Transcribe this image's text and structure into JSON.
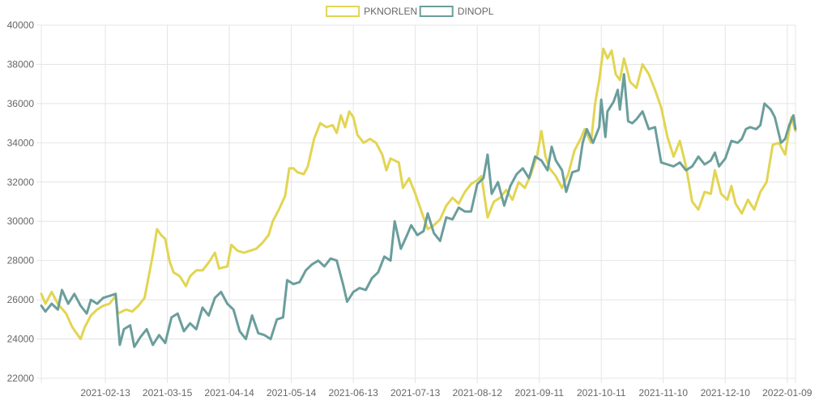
{
  "chart_data": {
    "type": "line",
    "title": "",
    "xlabel": "",
    "ylabel": "",
    "legend_position": "top-center",
    "grid": true,
    "ylim": [
      22000,
      40000
    ],
    "yticks": [
      22000,
      24000,
      26000,
      28000,
      30000,
      32000,
      34000,
      36000,
      38000,
      40000
    ],
    "ytick_labels": [
      "22000",
      "24000",
      "26000",
      "28000",
      "30000",
      "32000",
      "34000",
      "36000",
      "38000",
      "40000"
    ],
    "xlim": [
      "2021-01-13",
      "2022-01-13"
    ],
    "xticks": [
      "2021-02-13",
      "2021-03-15",
      "2021-04-14",
      "2021-05-14",
      "2021-06-13",
      "2021-07-13",
      "2021-08-12",
      "2021-09-11",
      "2021-10-11",
      "2021-11-10",
      "2021-12-10",
      "2022-01-09"
    ],
    "series": [
      {
        "name": "PKNORLEN",
        "color": "#e2d552",
        "points": [
          [
            "2021-01-13",
            26300
          ],
          [
            "2021-01-15",
            25800
          ],
          [
            "2021-01-18",
            26400
          ],
          [
            "2021-01-21",
            25800
          ],
          [
            "2021-01-25",
            25300
          ],
          [
            "2021-01-28",
            24600
          ],
          [
            "2021-02-01",
            24000
          ],
          [
            "2021-02-03",
            24600
          ],
          [
            "2021-02-06",
            25200
          ],
          [
            "2021-02-09",
            25500
          ],
          [
            "2021-02-12",
            25700
          ],
          [
            "2021-02-15",
            25800
          ],
          [
            "2021-02-18",
            26200
          ],
          [
            "2021-02-19",
            25300
          ],
          [
            "2021-02-23",
            25500
          ],
          [
            "2021-02-26",
            25400
          ],
          [
            "2021-03-01",
            25700
          ],
          [
            "2021-03-04",
            26100
          ],
          [
            "2021-03-06",
            27200
          ],
          [
            "2021-03-08",
            28300
          ],
          [
            "2021-03-10",
            29600
          ],
          [
            "2021-03-12",
            29300
          ],
          [
            "2021-03-14",
            29100
          ],
          [
            "2021-03-16",
            28000
          ],
          [
            "2021-03-18",
            27400
          ],
          [
            "2021-03-21",
            27200
          ],
          [
            "2021-03-24",
            26700
          ],
          [
            "2021-03-26",
            27200
          ],
          [
            "2021-03-29",
            27500
          ],
          [
            "2021-04-01",
            27500
          ],
          [
            "2021-04-04",
            27900
          ],
          [
            "2021-04-07",
            28400
          ],
          [
            "2021-04-09",
            27600
          ],
          [
            "2021-04-13",
            27700
          ],
          [
            "2021-04-15",
            28800
          ],
          [
            "2021-04-18",
            28500
          ],
          [
            "2021-04-21",
            28400
          ],
          [
            "2021-04-24",
            28500
          ],
          [
            "2021-04-27",
            28600
          ],
          [
            "2021-04-30",
            28900
          ],
          [
            "2021-05-03",
            29300
          ],
          [
            "2021-05-05",
            30000
          ],
          [
            "2021-05-08",
            30600
          ],
          [
            "2021-05-11",
            31300
          ],
          [
            "2021-05-13",
            32700
          ],
          [
            "2021-05-15",
            32700
          ],
          [
            "2021-05-17",
            32500
          ],
          [
            "2021-05-20",
            32400
          ],
          [
            "2021-05-22",
            32800
          ],
          [
            "2021-05-25",
            34200
          ],
          [
            "2021-05-28",
            35000
          ],
          [
            "2021-05-31",
            34800
          ],
          [
            "2021-06-03",
            34900
          ],
          [
            "2021-06-05",
            34500
          ],
          [
            "2021-06-07",
            35400
          ],
          [
            "2021-06-09",
            34800
          ],
          [
            "2021-06-11",
            35600
          ],
          [
            "2021-06-13",
            35300
          ],
          [
            "2021-06-15",
            34400
          ],
          [
            "2021-06-18",
            34000
          ],
          [
            "2021-06-21",
            34200
          ],
          [
            "2021-06-24",
            34000
          ],
          [
            "2021-06-27",
            33400
          ],
          [
            "2021-06-29",
            32600
          ],
          [
            "2021-07-01",
            33200
          ],
          [
            "2021-07-05",
            33000
          ],
          [
            "2021-07-07",
            31700
          ],
          [
            "2021-07-10",
            32200
          ],
          [
            "2021-07-13",
            31400
          ],
          [
            "2021-07-16",
            30500
          ],
          [
            "2021-07-19",
            29600
          ],
          [
            "2021-07-22",
            29800
          ],
          [
            "2021-07-25",
            30100
          ],
          [
            "2021-07-28",
            30800
          ],
          [
            "2021-07-31",
            31200
          ],
          [
            "2021-08-03",
            30900
          ],
          [
            "2021-08-06",
            31500
          ],
          [
            "2021-08-09",
            31900
          ],
          [
            "2021-08-12",
            32100
          ],
          [
            "2021-08-14",
            32300
          ],
          [
            "2021-08-17",
            30200
          ],
          [
            "2021-08-20",
            31000
          ],
          [
            "2021-08-23",
            31200
          ],
          [
            "2021-08-26",
            31600
          ],
          [
            "2021-08-29",
            31100
          ],
          [
            "2021-09-01",
            32000
          ],
          [
            "2021-09-04",
            31700
          ],
          [
            "2021-09-07",
            32400
          ],
          [
            "2021-09-10",
            33400
          ],
          [
            "2021-09-12",
            34600
          ],
          [
            "2021-09-14",
            33300
          ],
          [
            "2021-09-16",
            32700
          ],
          [
            "2021-09-19",
            32300
          ],
          [
            "2021-09-22",
            31700
          ],
          [
            "2021-09-25",
            32400
          ],
          [
            "2021-09-28",
            33600
          ],
          [
            "2021-10-01",
            34200
          ],
          [
            "2021-10-03",
            34700
          ],
          [
            "2021-10-06",
            34000
          ],
          [
            "2021-10-08",
            36000
          ],
          [
            "2021-10-10",
            37200
          ],
          [
            "2021-10-12",
            38800
          ],
          [
            "2021-10-14",
            38300
          ],
          [
            "2021-10-16",
            38700
          ],
          [
            "2021-10-18",
            37500
          ],
          [
            "2021-10-20",
            37200
          ],
          [
            "2021-10-22",
            38300
          ],
          [
            "2021-10-25",
            37100
          ],
          [
            "2021-10-28",
            36800
          ],
          [
            "2021-10-31",
            38000
          ],
          [
            "2021-11-03",
            37500
          ],
          [
            "2021-11-06",
            36700
          ],
          [
            "2021-11-09",
            35800
          ],
          [
            "2021-11-12",
            34300
          ],
          [
            "2021-11-15",
            33300
          ],
          [
            "2021-11-18",
            34100
          ],
          [
            "2021-11-21",
            32800
          ],
          [
            "2021-11-24",
            31000
          ],
          [
            "2021-11-27",
            30600
          ],
          [
            "2021-11-30",
            31500
          ],
          [
            "2021-12-03",
            31400
          ],
          [
            "2021-12-05",
            32600
          ],
          [
            "2021-12-08",
            31400
          ],
          [
            "2021-12-11",
            31100
          ],
          [
            "2021-12-13",
            31800
          ],
          [
            "2021-12-15",
            30900
          ],
          [
            "2021-12-18",
            30400
          ],
          [
            "2021-12-21",
            31100
          ],
          [
            "2021-12-24",
            30600
          ],
          [
            "2021-12-27",
            31500
          ],
          [
            "2021-12-30",
            32000
          ],
          [
            "2022-01-02",
            33900
          ],
          [
            "2022-01-05",
            34000
          ],
          [
            "2022-01-08",
            33400
          ],
          [
            "2022-01-11",
            35300
          ],
          [
            "2022-01-13",
            34600
          ]
        ]
      },
      {
        "name": "DINOPL",
        "color": "#6a9e9c",
        "points": [
          [
            "2021-01-13",
            25700
          ],
          [
            "2021-01-15",
            25400
          ],
          [
            "2021-01-18",
            25800
          ],
          [
            "2021-01-21",
            25500
          ],
          [
            "2021-01-23",
            26500
          ],
          [
            "2021-01-26",
            25800
          ],
          [
            "2021-01-29",
            26300
          ],
          [
            "2021-02-01",
            25700
          ],
          [
            "2021-02-04",
            25300
          ],
          [
            "2021-02-06",
            26000
          ],
          [
            "2021-02-09",
            25800
          ],
          [
            "2021-02-12",
            26100
          ],
          [
            "2021-02-15",
            26200
          ],
          [
            "2021-02-18",
            26300
          ],
          [
            "2021-02-20",
            23700
          ],
          [
            "2021-02-22",
            24500
          ],
          [
            "2021-02-25",
            24700
          ],
          [
            "2021-02-27",
            23600
          ],
          [
            "2021-03-02",
            24100
          ],
          [
            "2021-03-05",
            24500
          ],
          [
            "2021-03-08",
            23700
          ],
          [
            "2021-03-11",
            24200
          ],
          [
            "2021-03-14",
            23800
          ],
          [
            "2021-03-17",
            25100
          ],
          [
            "2021-03-20",
            25300
          ],
          [
            "2021-03-23",
            24400
          ],
          [
            "2021-03-26",
            24800
          ],
          [
            "2021-03-29",
            24500
          ],
          [
            "2021-04-01",
            25600
          ],
          [
            "2021-04-04",
            25200
          ],
          [
            "2021-04-07",
            26100
          ],
          [
            "2021-04-10",
            26400
          ],
          [
            "2021-04-13",
            25800
          ],
          [
            "2021-04-16",
            25500
          ],
          [
            "2021-04-19",
            24400
          ],
          [
            "2021-04-22",
            24000
          ],
          [
            "2021-04-25",
            25200
          ],
          [
            "2021-04-28",
            24300
          ],
          [
            "2021-05-01",
            24200
          ],
          [
            "2021-05-04",
            24000
          ],
          [
            "2021-05-07",
            25000
          ],
          [
            "2021-05-10",
            25100
          ],
          [
            "2021-05-12",
            27000
          ],
          [
            "2021-05-15",
            26800
          ],
          [
            "2021-05-18",
            26900
          ],
          [
            "2021-05-21",
            27500
          ],
          [
            "2021-05-24",
            27800
          ],
          [
            "2021-05-27",
            28000
          ],
          [
            "2021-05-30",
            27700
          ],
          [
            "2021-06-02",
            28100
          ],
          [
            "2021-06-05",
            28000
          ],
          [
            "2021-06-08",
            26800
          ],
          [
            "2021-06-10",
            25900
          ],
          [
            "2021-06-13",
            26400
          ],
          [
            "2021-06-16",
            26600
          ],
          [
            "2021-06-19",
            26500
          ],
          [
            "2021-06-22",
            27100
          ],
          [
            "2021-06-25",
            27400
          ],
          [
            "2021-06-28",
            28200
          ],
          [
            "2021-07-01",
            28000
          ],
          [
            "2021-07-03",
            30000
          ],
          [
            "2021-07-06",
            28600
          ],
          [
            "2021-07-09",
            29300
          ],
          [
            "2021-07-11",
            29800
          ],
          [
            "2021-07-14",
            29300
          ],
          [
            "2021-07-17",
            29500
          ],
          [
            "2021-07-19",
            30400
          ],
          [
            "2021-07-22",
            29400
          ],
          [
            "2021-07-25",
            29000
          ],
          [
            "2021-07-28",
            30200
          ],
          [
            "2021-07-31",
            30100
          ],
          [
            "2021-08-03",
            30700
          ],
          [
            "2021-08-06",
            30500
          ],
          [
            "2021-08-09",
            30500
          ],
          [
            "2021-08-12",
            31900
          ],
          [
            "2021-08-15",
            32200
          ],
          [
            "2021-08-17",
            33400
          ],
          [
            "2021-08-19",
            31400
          ],
          [
            "2021-08-22",
            32000
          ],
          [
            "2021-08-25",
            30800
          ],
          [
            "2021-08-28",
            31800
          ],
          [
            "2021-08-31",
            32400
          ],
          [
            "2021-09-03",
            32700
          ],
          [
            "2021-09-06",
            32200
          ],
          [
            "2021-09-09",
            33300
          ],
          [
            "2021-09-12",
            33100
          ],
          [
            "2021-09-15",
            32600
          ],
          [
            "2021-09-17",
            33800
          ],
          [
            "2021-09-19",
            33100
          ],
          [
            "2021-09-22",
            32600
          ],
          [
            "2021-09-24",
            31500
          ],
          [
            "2021-09-27",
            32500
          ],
          [
            "2021-09-30",
            32600
          ],
          [
            "2021-10-02",
            34000
          ],
          [
            "2021-10-04",
            34700
          ],
          [
            "2021-10-07",
            34000
          ],
          [
            "2021-10-10",
            34800
          ],
          [
            "2021-10-11",
            36200
          ],
          [
            "2021-10-13",
            34300
          ],
          [
            "2021-10-14",
            35600
          ],
          [
            "2021-10-17",
            36100
          ],
          [
            "2021-10-19",
            36700
          ],
          [
            "2021-10-20",
            35700
          ],
          [
            "2021-10-22",
            37500
          ],
          [
            "2021-10-24",
            35100
          ],
          [
            "2021-10-26",
            35000
          ],
          [
            "2021-10-28",
            35200
          ],
          [
            "2021-10-31",
            35600
          ],
          [
            "2021-11-03",
            34700
          ],
          [
            "2021-11-06",
            34800
          ],
          [
            "2021-11-09",
            33000
          ],
          [
            "2021-11-12",
            32900
          ],
          [
            "2021-11-15",
            32800
          ],
          [
            "2021-11-18",
            33000
          ],
          [
            "2021-11-21",
            32600
          ],
          [
            "2021-11-24",
            32800
          ],
          [
            "2021-11-27",
            33300
          ],
          [
            "2021-11-30",
            32900
          ],
          [
            "2021-12-03",
            33100
          ],
          [
            "2021-12-05",
            33500
          ],
          [
            "2021-12-07",
            32800
          ],
          [
            "2021-12-10",
            33200
          ],
          [
            "2021-12-13",
            34100
          ],
          [
            "2021-12-16",
            34000
          ],
          [
            "2021-12-18",
            34200
          ],
          [
            "2021-12-20",
            34700
          ],
          [
            "2021-12-22",
            34800
          ],
          [
            "2021-12-25",
            34700
          ],
          [
            "2021-12-27",
            34900
          ],
          [
            "2021-12-29",
            36000
          ],
          [
            "2022-01-01",
            35700
          ],
          [
            "2022-01-03",
            35300
          ],
          [
            "2022-01-06",
            34000
          ],
          [
            "2022-01-08",
            34200
          ],
          [
            "2022-01-10",
            34900
          ],
          [
            "2022-01-12",
            35400
          ],
          [
            "2022-01-13",
            34700
          ]
        ]
      }
    ]
  }
}
